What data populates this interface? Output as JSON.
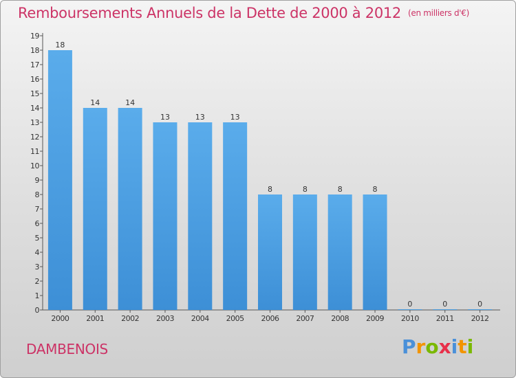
{
  "title": "Remboursements Annuels de la Dette de 2000 à 2012",
  "unit_label": "(en milliers d'€)",
  "commune": "DAMBENOIS",
  "brand": {
    "letters": [
      "P",
      "r",
      "o",
      "x",
      "i",
      "t",
      "i"
    ],
    "colors": [
      "#4a90d9",
      "#f29400",
      "#7ab800",
      "#e8304a",
      "#4a90d9",
      "#f29400",
      "#7ab800"
    ]
  },
  "colors": {
    "bar": "#3d8fd6",
    "bar_light": "#5aaceb",
    "title": "#cc3366",
    "axis": "#555555"
  },
  "chart_data": {
    "type": "bar",
    "title": "Remboursements Annuels de la Dette de 2000 à 2012",
    "unit": "(en milliers d'€)",
    "categories": [
      "2000",
      "2001",
      "2002",
      "2003",
      "2004",
      "2005",
      "2006",
      "2007",
      "2008",
      "2009",
      "2010",
      "2011",
      "2012"
    ],
    "values": [
      18,
      14,
      14,
      13,
      13,
      13,
      8,
      8,
      8,
      8,
      0,
      0,
      0
    ],
    "data_labels": [
      "18",
      "14",
      "14",
      "13",
      "13",
      "13",
      "8",
      "8",
      "8",
      "8",
      "0",
      "0",
      "0"
    ],
    "y_ticks": [
      "0",
      "1",
      "2",
      "3",
      "4",
      "5",
      "6",
      "7",
      "8",
      "9",
      "10",
      "11",
      "12",
      "13",
      "14",
      "15",
      "16",
      "17",
      "18",
      "19"
    ],
    "ylim": [
      0,
      19
    ],
    "grid": false,
    "legend": "none"
  }
}
